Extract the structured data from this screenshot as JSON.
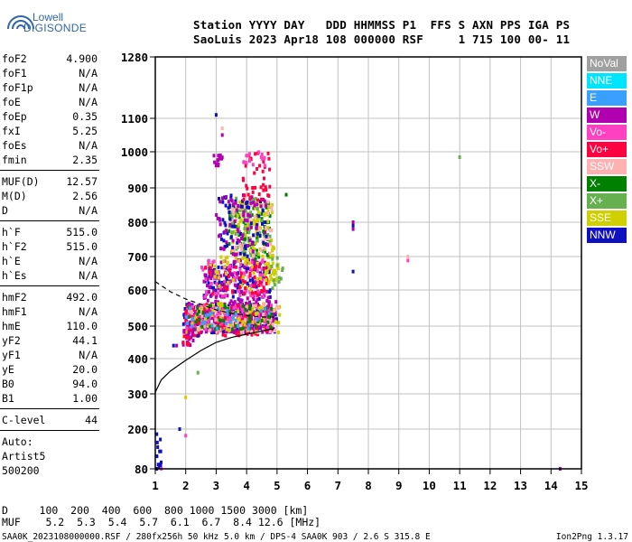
{
  "logo": {
    "line1": "Lowell",
    "line2": "DIGISONDE"
  },
  "header": {
    "line1": "Station YYYY DAY   DDD HHMMSS P1  FFS S AXN PPS IGA PS",
    "line2": "SaoLuis 2023 Apr18 108 000000 RSF     1 715 100 00- 11"
  },
  "params": {
    "group1": [
      {
        "name": "foF2",
        "value": "4.900"
      },
      {
        "name": "foF1",
        "value": "N/A"
      },
      {
        "name": "foF1p",
        "value": "N/A"
      },
      {
        "name": "foE",
        "value": "N/A"
      },
      {
        "name": "foEp",
        "value": "0.35"
      },
      {
        "name": "fxI",
        "value": "5.25"
      },
      {
        "name": "foEs",
        "value": "N/A"
      },
      {
        "name": "fmin",
        "value": "2.35"
      }
    ],
    "group2": [
      {
        "name": "MUF(D)",
        "value": "12.57"
      },
      {
        "name": "M(D)",
        "value": "2.56"
      },
      {
        "name": "D",
        "value": "N/A"
      }
    ],
    "group3": [
      {
        "name": "h`F",
        "value": "515.0"
      },
      {
        "name": "h`F2",
        "value": "515.0"
      },
      {
        "name": "h`E",
        "value": "N/A"
      },
      {
        "name": "h`Es",
        "value": "N/A"
      }
    ],
    "group4": [
      {
        "name": "hmF2",
        "value": "492.0"
      },
      {
        "name": "hmF1",
        "value": "N/A"
      },
      {
        "name": "hmE",
        "value": "110.0"
      },
      {
        "name": "yF2",
        "value": "44.1"
      },
      {
        "name": "yF1",
        "value": "N/A"
      },
      {
        "name": "yE",
        "value": "20.0"
      },
      {
        "name": "B0",
        "value": "94.0"
      },
      {
        "name": "B1",
        "value": "1.00"
      }
    ],
    "clevel": {
      "name": "C-level",
      "value": "44"
    },
    "auto": {
      "line1": "Auto:",
      "line2": "Artist5",
      "line3": "500200"
    }
  },
  "legend": [
    {
      "label": "NoVal",
      "color": "#a0a0a0"
    },
    {
      "label": "NNE",
      "color": "#00e5ff"
    },
    {
      "label": "E",
      "color": "#3aa0ff"
    },
    {
      "label": "W",
      "color": "#b000b0"
    },
    {
      "label": "Vo-",
      "color": "#ff40c0"
    },
    {
      "label": "Vo+",
      "color": "#ff0040"
    },
    {
      "label": "SSW",
      "color": "#ffb0b0"
    },
    {
      "label": "X-",
      "color": "#008000"
    },
    {
      "label": "X+",
      "color": "#66b050"
    },
    {
      "label": "SSE",
      "color": "#d0d000"
    },
    {
      "label": "NNW",
      "color": "#1010c0"
    }
  ],
  "footer": {
    "d_row": "D     100  200  400  600  800 1000 1500 3000 [km]",
    "muf_row": "MUF    5.2  5.3  5.4  5.7  6.1  6.7  8.4 12.6 [MHz]",
    "bottom_left": "SAA0K_2023108000000.RSF / 280fx256h 50 kHz 5.0 km / DPS-4 SAA0K 903 / 2.6 S 315.8 E",
    "bottom_right": "Ion2Png 1.3.17"
  },
  "chart_data": {
    "type": "scatter",
    "title": "",
    "xlabel": "",
    "ylabel": "",
    "xlim": [
      1,
      15
    ],
    "ylim": [
      80,
      1280
    ],
    "xticks": [
      1,
      2,
      3,
      4,
      5,
      6,
      7,
      8,
      9,
      10,
      11,
      12,
      13,
      14,
      15
    ],
    "yticks": [
      80,
      200,
      300,
      400,
      500,
      600,
      700,
      800,
      900,
      1000,
      1100,
      1280
    ],
    "grid": true,
    "curves": [
      {
        "name": "profile",
        "style": "solid",
        "points": [
          [
            1.0,
            305
          ],
          [
            1.2,
            340
          ],
          [
            1.5,
            365
          ],
          [
            2.0,
            395
          ],
          [
            2.5,
            425
          ],
          [
            3.0,
            450
          ],
          [
            3.5,
            465
          ],
          [
            4.0,
            475
          ],
          [
            4.5,
            485
          ],
          [
            4.9,
            492
          ]
        ]
      },
      {
        "name": "trace-dashed",
        "style": "dashed",
        "points": [
          [
            1.0,
            625
          ],
          [
            1.5,
            595
          ],
          [
            2.0,
            575
          ],
          [
            2.5,
            560
          ],
          [
            3.0,
            545
          ],
          [
            3.5,
            535
          ],
          [
            4.0,
            530
          ],
          [
            4.5,
            525
          ],
          [
            4.9,
            525
          ]
        ]
      }
    ],
    "clusters": [
      {
        "color": "#1010c0",
        "x": [
          1.9,
          5.0
        ],
        "y": [
          480,
          560
        ],
        "n": 180
      },
      {
        "color": "#b000b0",
        "x": [
          2.0,
          5.0
        ],
        "y": [
          480,
          570
        ],
        "n": 260
      },
      {
        "color": "#ff40c0",
        "x": [
          2.0,
          4.9
        ],
        "y": [
          490,
          560
        ],
        "n": 160
      },
      {
        "color": "#ff0040",
        "x": [
          1.9,
          4.8
        ],
        "y": [
          470,
          560
        ],
        "n": 90
      },
      {
        "color": "#d0d000",
        "x": [
          2.0,
          5.1
        ],
        "y": [
          480,
          570
        ],
        "n": 70
      },
      {
        "color": "#ffb0b0",
        "x": [
          2.0,
          5.1
        ],
        "y": [
          480,
          560
        ],
        "n": 60
      },
      {
        "color": "#008000",
        "x": [
          2.0,
          4.9
        ],
        "y": [
          490,
          560
        ],
        "n": 50
      },
      {
        "color": "#3aa0ff",
        "x": [
          2.0,
          4.8
        ],
        "y": [
          490,
          550
        ],
        "n": 30
      },
      {
        "color": "#1010c0",
        "x": [
          2.6,
          4.8
        ],
        "y": [
          570,
          680
        ],
        "n": 90
      },
      {
        "color": "#b000b0",
        "x": [
          2.6,
          4.8
        ],
        "y": [
          570,
          690
        ],
        "n": 110
      },
      {
        "color": "#ff40c0",
        "x": [
          2.5,
          4.6
        ],
        "y": [
          580,
          690
        ],
        "n": 70
      },
      {
        "color": "#d0d000",
        "x": [
          2.8,
          5.0
        ],
        "y": [
          600,
          700
        ],
        "n": 50
      },
      {
        "color": "#ff0040",
        "x": [
          2.6,
          4.7
        ],
        "y": [
          580,
          680
        ],
        "n": 40
      },
      {
        "color": "#008000",
        "x": [
          3.4,
          4.8
        ],
        "y": [
          690,
          860
        ],
        "n": 90
      },
      {
        "color": "#d0d000",
        "x": [
          3.5,
          4.9
        ],
        "y": [
          700,
          860
        ],
        "n": 80
      },
      {
        "color": "#66b050",
        "x": [
          3.4,
          4.8
        ],
        "y": [
          700,
          870
        ],
        "n": 60
      },
      {
        "color": "#ffb0b0",
        "x": [
          3.5,
          4.9
        ],
        "y": [
          700,
          860
        ],
        "n": 50
      },
      {
        "color": "#1010c0",
        "x": [
          3.0,
          4.7
        ],
        "y": [
          700,
          880
        ],
        "n": 60
      },
      {
        "color": "#b000b0",
        "x": [
          3.0,
          4.7
        ],
        "y": [
          700,
          880
        ],
        "n": 60
      },
      {
        "color": "#ff0040",
        "x": [
          3.8,
          4.8
        ],
        "y": [
          860,
          1000
        ],
        "n": 40
      },
      {
        "color": "#b000b0",
        "x": [
          2.9,
          3.2
        ],
        "y": [
          960,
          990
        ],
        "n": 15
      },
      {
        "color": "#ff40c0",
        "x": [
          3.9,
          4.6
        ],
        "y": [
          960,
          1000
        ],
        "n": 15
      },
      {
        "color": "#d0d000",
        "x": [
          4.6,
          5.1
        ],
        "y": [
          620,
          680
        ],
        "n": 20
      },
      {
        "color": "#66b050",
        "x": [
          4.8,
          5.2
        ],
        "y": [
          600,
          700
        ],
        "n": 12
      },
      {
        "color": "#1010c0",
        "x": [
          1.0,
          1.2
        ],
        "y": [
          80,
          200
        ],
        "n": 12
      },
      {
        "color": "#b000b0",
        "x": [
          1.9,
          2.3
        ],
        "y": [
          440,
          490
        ],
        "n": 15
      },
      {
        "color": "#ff0040",
        "x": [
          1.9,
          2.1
        ],
        "y": [
          440,
          470
        ],
        "n": 8
      }
    ],
    "points": [
      {
        "x": 3.0,
        "y": 1110,
        "color": "#1010c0"
      },
      {
        "x": 3.2,
        "y": 1070,
        "color": "#ffb0b0"
      },
      {
        "x": 3.2,
        "y": 1050,
        "color": "#b000b0"
      },
      {
        "x": 1.7,
        "y": 440,
        "color": "#b000b0"
      },
      {
        "x": 1.6,
        "y": 440,
        "color": "#1010c0"
      },
      {
        "x": 1.8,
        "y": 200,
        "color": "#1010c0"
      },
      {
        "x": 2.0,
        "y": 180,
        "color": "#ff40c0"
      },
      {
        "x": 2.0,
        "y": 290,
        "color": "#d0d000"
      },
      {
        "x": 2.4,
        "y": 360,
        "color": "#66b050"
      },
      {
        "x": 2.4,
        "y": 470,
        "color": "#1010c0"
      },
      {
        "x": 1.05,
        "y": 80,
        "color": "#1010c0"
      },
      {
        "x": 1.2,
        "y": 80,
        "color": "#ff40c0"
      },
      {
        "x": 7.5,
        "y": 800,
        "color": "#b000b0"
      },
      {
        "x": 7.5,
        "y": 790,
        "color": "#1010c0"
      },
      {
        "x": 7.5,
        "y": 780,
        "color": "#b000b0"
      },
      {
        "x": 7.5,
        "y": 655,
        "color": "#1010c0"
      },
      {
        "x": 9.3,
        "y": 700,
        "color": "#ffb0b0"
      },
      {
        "x": 9.3,
        "y": 688,
        "color": "#ff40c0"
      },
      {
        "x": 11.0,
        "y": 985,
        "color": "#66b050"
      },
      {
        "x": 14.3,
        "y": 80,
        "color": "#b000b0"
      },
      {
        "x": 5.3,
        "y": 880,
        "color": "#008000"
      }
    ]
  }
}
